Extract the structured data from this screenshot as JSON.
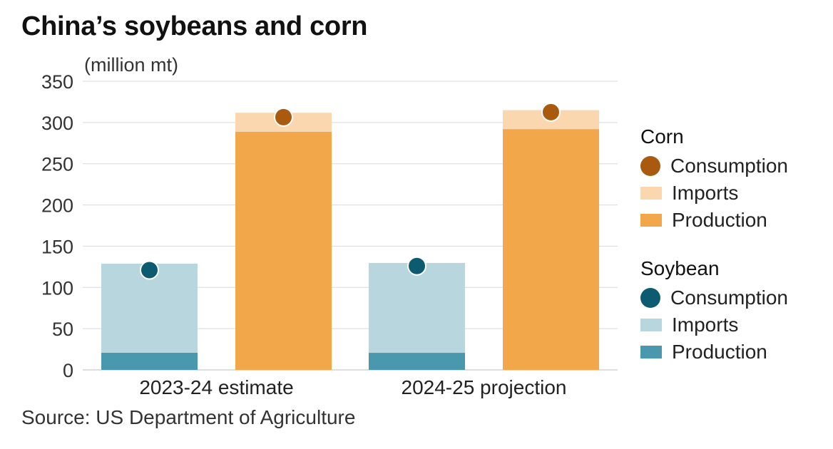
{
  "chart_data": {
    "type": "bar",
    "title": "China’s soybeans and corn",
    "ylabel": "(million mt)",
    "source": "Source: US Department of Agriculture",
    "categories": [
      "2023-24 estimate",
      "2024-25 projection"
    ],
    "ylim": [
      0,
      350
    ],
    "yticks": [
      0,
      50,
      100,
      150,
      200,
      250,
      300,
      350
    ],
    "grid": true,
    "legend_position": "right",
    "groups": [
      {
        "name": "Soybean",
        "stack": [
          {
            "name": "Production",
            "values": [
              20.8,
              20.7
            ],
            "color": "#4a98ae"
          },
          {
            "name": "Imports",
            "values": [
              108.0,
              109.0
            ],
            "color": "#b8d6dd"
          }
        ],
        "markers": {
          "name": "Consumption",
          "values": [
            121.0,
            126.0
          ],
          "color": "#0d5b70"
        }
      },
      {
        "name": "Corn",
        "stack": [
          {
            "name": "Production",
            "values": [
              288.8,
              292.0
            ],
            "color": "#f2a84a"
          },
          {
            "name": "Imports",
            "values": [
              23.0,
              23.0
            ],
            "color": "#fbd7b0"
          }
        ],
        "markers": {
          "name": "Consumption",
          "values": [
            306.5,
            312.5
          ],
          "color": "#a95a0f"
        }
      }
    ]
  },
  "legend": {
    "corn": {
      "title": "Corn",
      "consumption": "Consumption",
      "imports": "Imports",
      "production": "Production"
    },
    "soybean": {
      "title": "Soybean",
      "consumption": "Consumption",
      "imports": "Imports",
      "production": "Production"
    }
  }
}
